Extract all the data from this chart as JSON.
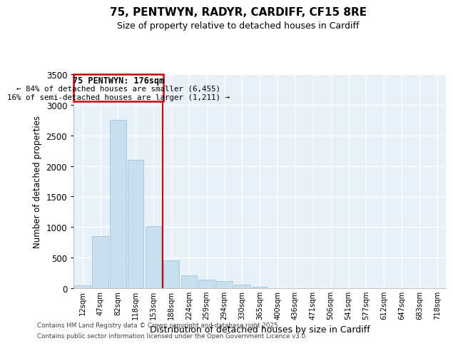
{
  "title_line1": "75, PENTWYN, RADYR, CARDIFF, CF15 8RE",
  "title_line2": "Size of property relative to detached houses in Cardiff",
  "xlabel": "Distribution of detached houses by size in Cardiff",
  "ylabel": "Number of detached properties",
  "annotation_line1": "75 PENTWYN: 176sqm",
  "annotation_line2": "← 84% of detached houses are smaller (6,455)",
  "annotation_line3": "16% of semi-detached houses are larger (1,211) →",
  "categories": [
    "12sqm",
    "47sqm",
    "82sqm",
    "118sqm",
    "153sqm",
    "188sqm",
    "224sqm",
    "259sqm",
    "294sqm",
    "330sqm",
    "365sqm",
    "400sqm",
    "436sqm",
    "471sqm",
    "506sqm",
    "541sqm",
    "577sqm",
    "612sqm",
    "647sqm",
    "683sqm",
    "718sqm"
  ],
  "values": [
    50,
    850,
    2750,
    2100,
    1020,
    460,
    210,
    140,
    120,
    60,
    25,
    5,
    2,
    2,
    1,
    1,
    0,
    0,
    0,
    0,
    0
  ],
  "bar_color": "#c8dff0",
  "bar_edge_color": "#9bbdd4",
  "vline_color": "#cc0000",
  "ylim": [
    0,
    3500
  ],
  "yticks": [
    0,
    500,
    1000,
    1500,
    2000,
    2500,
    3000,
    3500
  ],
  "background_color": "#e8f0f8",
  "grid_color": "#ffffff",
  "footnote_line1": "Contains HM Land Registry data © Crown copyright and database right 2025.",
  "footnote_line2": "Contains public sector information licensed under the Open Government Licence v3.0."
}
